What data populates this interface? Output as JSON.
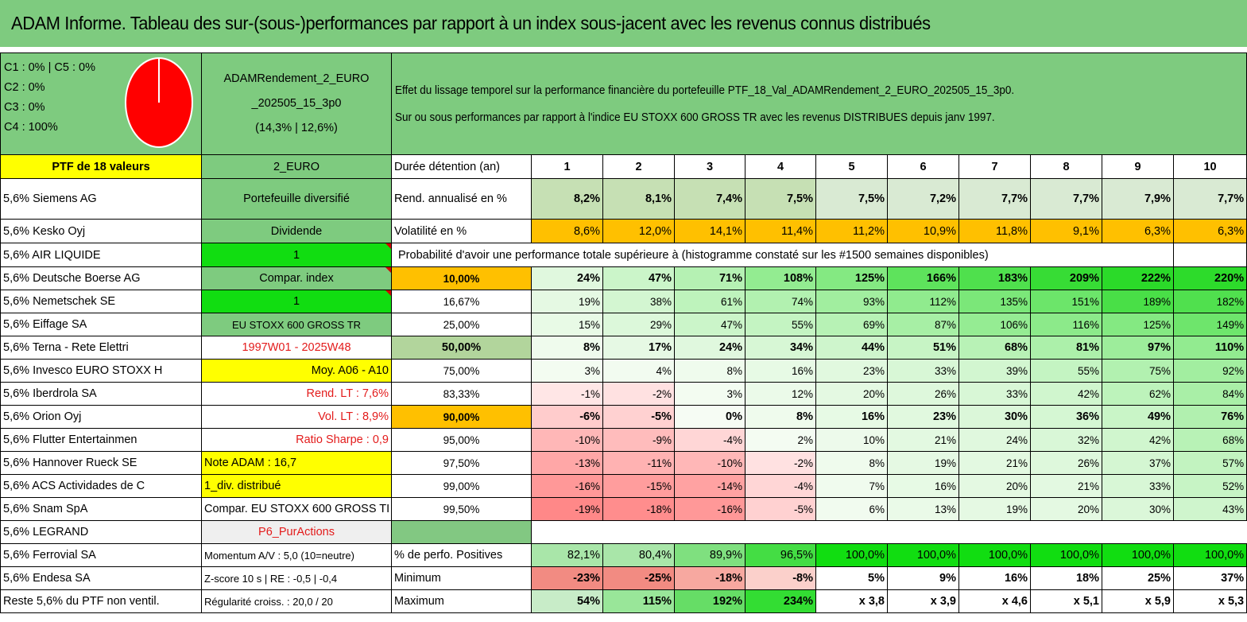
{
  "title": "ADAM Informe. Tableau des sur-(sous-)performances par rapport à un index sous-jacent avec les revenus connus distribués",
  "header": {
    "categories": [
      "C1 : 0% | C5 : 0%",
      "C2 : 0%",
      "C3 : 0%",
      "C4 : 100%"
    ],
    "pie": {
      "C1": 0,
      "C2": 0,
      "C3": 0,
      "C4": 100,
      "C5": 0,
      "color": "#ff0000"
    },
    "portfolio_name_line1": "ADAMRendement_2_EURO",
    "portfolio_name_line2": "_202505_15_3p0",
    "portfolio_stats": "(14,3% | 12,6%)",
    "desc_line1": "Effet du lissage temporel sur la performance financière du portefeuille PTF_18_Val_ADAMRendement_2_EURO_202505_15_3p0.",
    "desc_line2": "Sur ou sous performances par rapport à l'indice EU STOXX 600 GROSS TR avec les revenus DISTRIBUES depuis janv 1997."
  },
  "ptf_label": "PTF de 18 valeurs",
  "ptf_type": "2_EURO",
  "duration_label": "Durée détention (an)",
  "years": [
    "1",
    "2",
    "3",
    "4",
    "5",
    "6",
    "7",
    "8",
    "9",
    "10"
  ],
  "holdings": [
    "5,6% Siemens AG",
    "5,6% Kesko Oyj",
    "5,6% AIR LIQUIDE",
    "5,6% Deutsche Boerse AG",
    "5,6% Nemetschek SE",
    "5,6% Eiffage SA",
    "5,6% Terna - Rete Elettri",
    "5,6% Invesco EURO STOXX H",
    "5,6% Iberdrola SA",
    "5,6% Orion Oyj",
    "5,6% Flutter Entertainmen",
    "5,6% Hannover Rueck SE",
    "5,6% ACS Actividades de C",
    "5,6% Snam SpA",
    "5,6% LEGRAND",
    "5,6% Ferrovial SA",
    "5,6% Endesa SA",
    "Reste 5,6% du PTF non ventil."
  ],
  "info_col": [
    "Portefeuille diversifié",
    "Dividende",
    "1",
    "Compar. index",
    "1",
    "EU STOXX 600 GROSS TR",
    "1997W01 - 2025W48",
    "Moy. A06 - A10",
    "Rend. LT : 7,6%",
    "Vol. LT : 8,9%",
    "Ratio Sharpe : 0,9",
    "Note ADAM : 16,7",
    "1_div. distribué",
    "Compar. EU STOXX 600 GROSS TI",
    "P6_PurActions",
    "Momentum A/V : 5,0 (10=neutre)",
    "Z-score 10 s | RE : -0,5 | -0,4",
    "Régularité croiss. : 20,0 / 20"
  ],
  "rend": {
    "label": "Rend. annualisé en %",
    "values": [
      "8,2%",
      "8,1%",
      "7,4%",
      "7,5%",
      "7,5%",
      "7,2%",
      "7,7%",
      "7,7%",
      "7,9%",
      "7,7%"
    ]
  },
  "vol": {
    "label": "Volatilité en %",
    "values": [
      "8,6%",
      "12,0%",
      "14,1%",
      "11,4%",
      "11,2%",
      "10,9%",
      "11,8%",
      "9,1%",
      "6,3%",
      "6,3%"
    ]
  },
  "prob_title": "Probabilité d'avoir une performance totale supérieure à (histogramme constaté sur les #1500 semaines disponibles)",
  "prob_rows": [
    {
      "p": "10,00%",
      "v": [
        "24%",
        "47%",
        "71%",
        "108%",
        "125%",
        "166%",
        "183%",
        "209%",
        "222%",
        "220%"
      ]
    },
    {
      "p": "16,67%",
      "v": [
        "19%",
        "38%",
        "61%",
        "74%",
        "93%",
        "112%",
        "135%",
        "151%",
        "189%",
        "182%"
      ]
    },
    {
      "p": "25,00%",
      "v": [
        "15%",
        "29%",
        "47%",
        "55%",
        "69%",
        "87%",
        "106%",
        "116%",
        "125%",
        "149%"
      ]
    },
    {
      "p": "50,00%",
      "v": [
        "8%",
        "17%",
        "24%",
        "34%",
        "44%",
        "51%",
        "68%",
        "81%",
        "97%",
        "110%"
      ]
    },
    {
      "p": "75,00%",
      "v": [
        "3%",
        "4%",
        "8%",
        "16%",
        "23%",
        "33%",
        "39%",
        "55%",
        "75%",
        "92%"
      ]
    },
    {
      "p": "83,33%",
      "v": [
        "-1%",
        "-2%",
        "3%",
        "12%",
        "20%",
        "26%",
        "33%",
        "42%",
        "62%",
        "84%"
      ]
    },
    {
      "p": "90,00%",
      "v": [
        "-6%",
        "-5%",
        "0%",
        "8%",
        "16%",
        "23%",
        "30%",
        "36%",
        "49%",
        "76%"
      ]
    },
    {
      "p": "95,00%",
      "v": [
        "-10%",
        "-9%",
        "-4%",
        "2%",
        "10%",
        "21%",
        "24%",
        "32%",
        "42%",
        "68%"
      ]
    },
    {
      "p": "97,50%",
      "v": [
        "-13%",
        "-11%",
        "-10%",
        "-2%",
        "8%",
        "19%",
        "21%",
        "26%",
        "37%",
        "57%"
      ]
    },
    {
      "p": "99,00%",
      "v": [
        "-16%",
        "-15%",
        "-14%",
        "-4%",
        "7%",
        "16%",
        "20%",
        "21%",
        "33%",
        "52%"
      ]
    },
    {
      "p": "99,50%",
      "v": [
        "-19%",
        "-18%",
        "-16%",
        "-5%",
        "6%",
        "13%",
        "19%",
        "20%",
        "30%",
        "43%"
      ]
    }
  ],
  "positives": {
    "label": "% de perfo. Positives",
    "values": [
      "82,1%",
      "80,4%",
      "89,9%",
      "96,5%",
      "100,0%",
      "100,0%",
      "100,0%",
      "100,0%",
      "100,0%",
      "100,0%"
    ]
  },
  "minimum": {
    "label": "Minimum",
    "values": [
      "-23%",
      "-25%",
      "-18%",
      "-8%",
      "5%",
      "9%",
      "16%",
      "18%",
      "25%",
      "37%"
    ]
  },
  "maximum": {
    "label": "Maximum",
    "values": [
      "54%",
      "115%",
      "192%",
      "234%",
      "x 3,8",
      "x 3,9",
      "x 4,6",
      "x 5,1",
      "x 5,9",
      "x 5,3"
    ]
  }
}
